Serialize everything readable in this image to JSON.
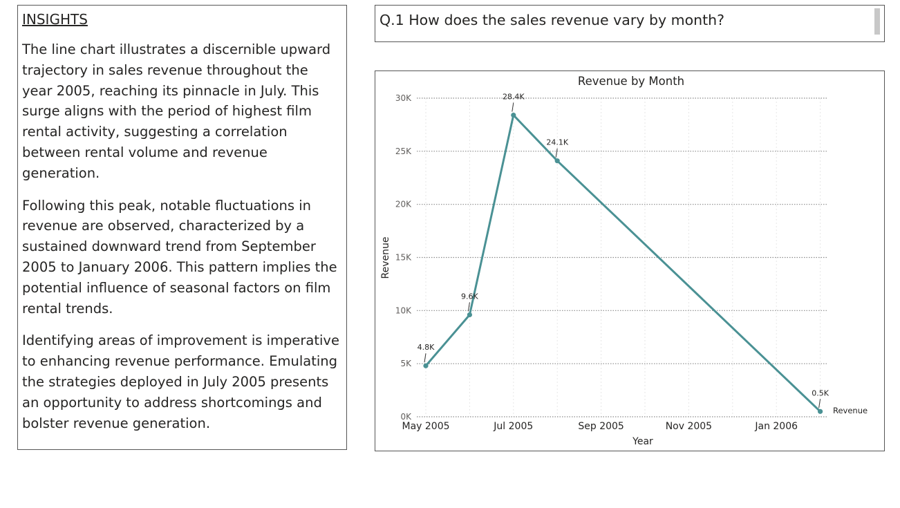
{
  "insights": {
    "title": "INSIGHTS",
    "paragraphs": [
      "The line chart illustrates a discernible upward trajectory in sales revenue throughout the year 2005, reaching its pinnacle in July. This surge aligns with the period of highest film rental activity, suggesting a correlation between rental volume and revenue generation.",
      "Following this peak, notable fluctuations in revenue are observed, characterized by a sustained downward trend from September 2005 to January 2006. This pattern implies the potential influence of seasonal factors on film rental trends.",
      "Identifying areas of improvement is imperative to enhancing revenue performance. Emulating the strategies deployed in July 2005 presents an opportunity to address shortcomings and bolster revenue generation."
    ]
  },
  "question": {
    "text": "Q.1 How does the sales revenue vary by month?"
  },
  "chart_data": {
    "type": "line",
    "title": "Revenue by Month",
    "xlabel": "Year",
    "ylabel": "Revenue",
    "ylim": [
      0,
      30000
    ],
    "y_ticks": [
      0,
      5000,
      10000,
      15000,
      20000,
      25000,
      30000
    ],
    "y_tick_labels": [
      "0K",
      "5K",
      "10K",
      "15K",
      "20K",
      "25K",
      "30K"
    ],
    "x_ticks": [
      "May 2005",
      "Jul 2005",
      "Sep 2005",
      "Nov 2005",
      "Jan 2006"
    ],
    "x_range": [
      "2005-05",
      "2006-02"
    ],
    "series": [
      {
        "name": "Revenue",
        "color": "#4a9194",
        "x": [
          "2005-05",
          "2005-06",
          "2005-07",
          "2005-08",
          "2006-02"
        ],
        "values": [
          4800,
          9600,
          28400,
          24100,
          500
        ],
        "labels": [
          "4.8K",
          "9.6K",
          "28.4K",
          "24.1K",
          "0.5K"
        ]
      }
    ],
    "grid": true,
    "legend": "right"
  }
}
